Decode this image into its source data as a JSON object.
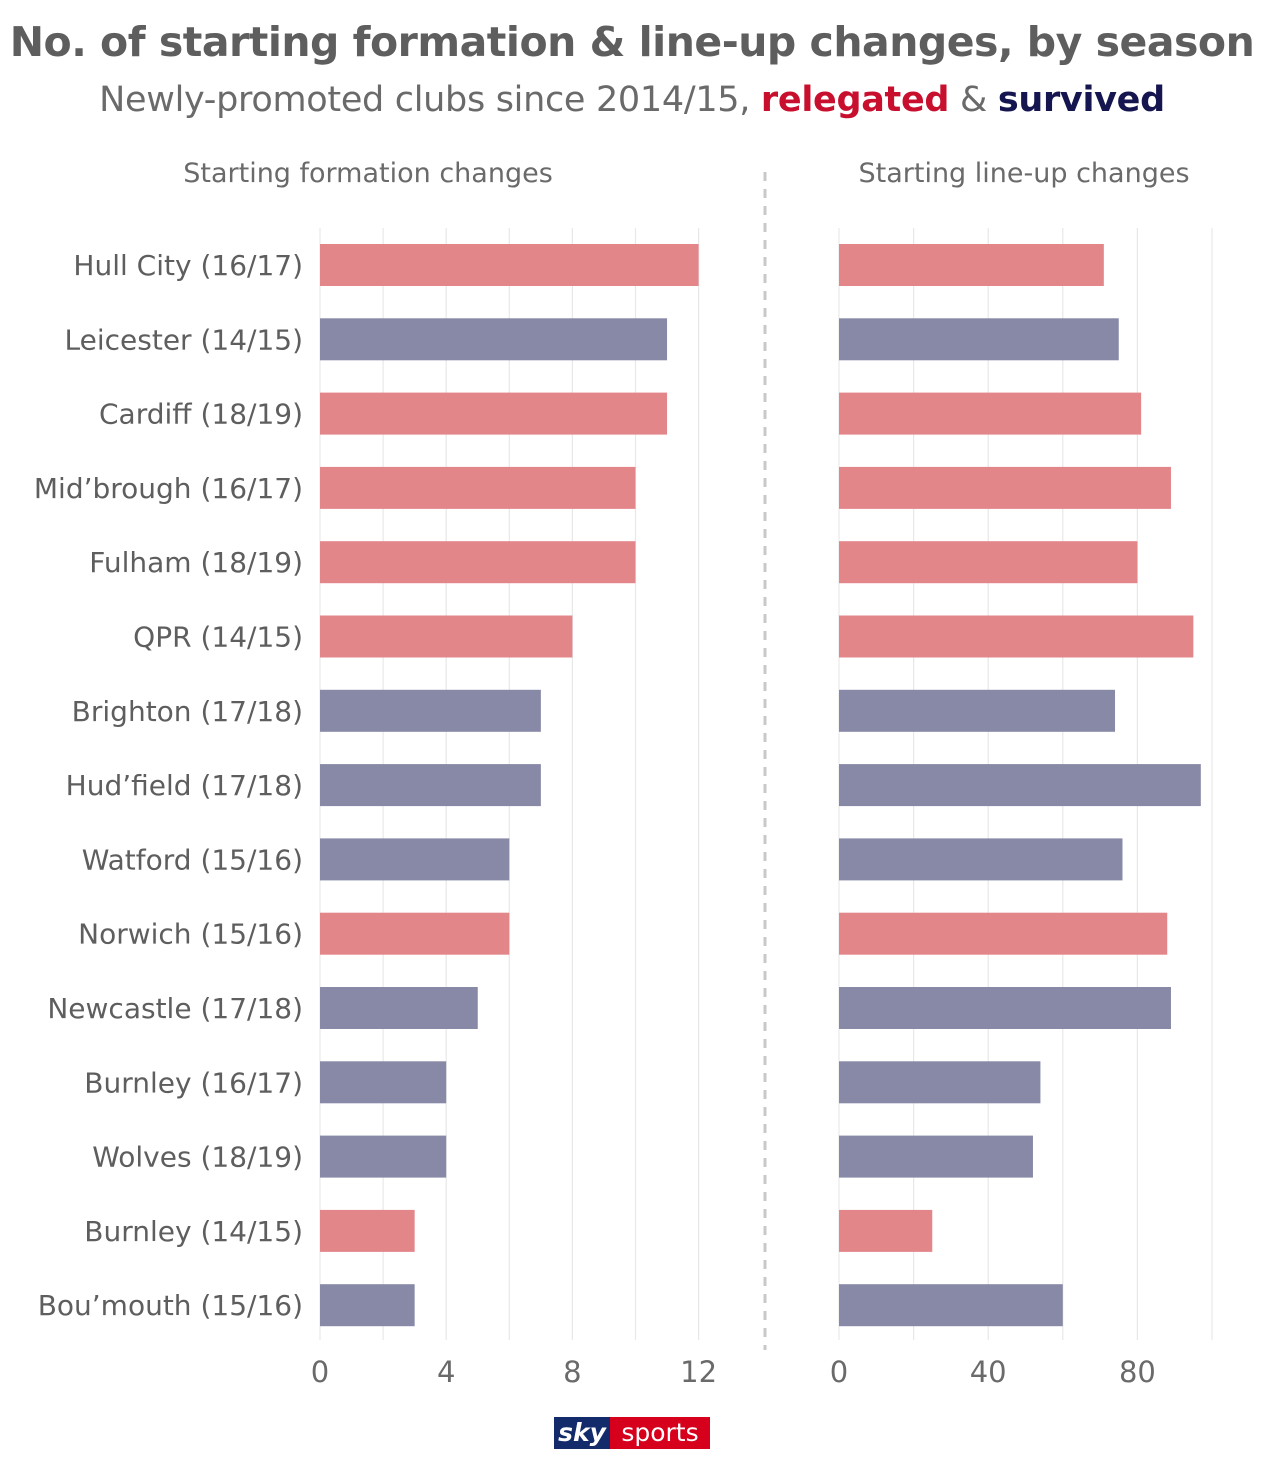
{
  "title": "No. of starting formation & line-up changes, by season",
  "subtitle": {
    "prefix": "Newly-promoted clubs since 2014/15,",
    "relegated": "relegated",
    "amp": "&",
    "survived": "survived"
  },
  "colors": {
    "relegated": "#e3868a",
    "survived": "#8789a6",
    "relegated_text": "#c8102e",
    "survived_text": "#15154f"
  },
  "logo": {
    "sky": "sky",
    "sports": "sports"
  },
  "chart_data": [
    {
      "type": "bar",
      "orientation": "horizontal",
      "title": "Starting formation changes",
      "categories": [
        "Hull City (16/17)",
        "Leicester (14/15)",
        "Cardiff (18/19)",
        "Mid’brough (16/17)",
        "Fulham (18/19)",
        "QPR (14/15)",
        "Brighton (17/18)",
        "Hud’field (17/18)",
        "Watford (15/16)",
        "Norwich (15/16)",
        "Newcastle (17/18)",
        "Burnley (16/17)",
        "Wolves (18/19)",
        "Burnley (14/15)",
        "Bou’mouth (15/16)"
      ],
      "values": [
        12,
        11,
        11,
        10,
        10,
        8,
        7,
        7,
        6,
        6,
        5,
        4,
        4,
        3,
        3
      ],
      "status": [
        "relegated",
        "survived",
        "relegated",
        "relegated",
        "relegated",
        "relegated",
        "survived",
        "survived",
        "survived",
        "relegated",
        "survived",
        "survived",
        "survived",
        "relegated",
        "survived"
      ],
      "xlim": [
        0,
        13
      ],
      "xticks": [
        0,
        4,
        8,
        12
      ],
      "grid": true
    },
    {
      "type": "bar",
      "orientation": "horizontal",
      "title": "Starting line-up changes",
      "categories": [
        "Hull City (16/17)",
        "Leicester (14/15)",
        "Cardiff (18/19)",
        "Mid’brough (16/17)",
        "Fulham (18/19)",
        "QPR (14/15)",
        "Brighton (17/18)",
        "Hud’field (17/18)",
        "Watford (15/16)",
        "Norwich (15/16)",
        "Newcastle (17/18)",
        "Burnley (16/17)",
        "Wolves (18/19)",
        "Burnley (14/15)",
        "Bou’mouth (15/16)"
      ],
      "values": [
        71,
        75,
        81,
        89,
        80,
        95,
        74,
        97,
        76,
        88,
        89,
        54,
        52,
        25,
        60
      ],
      "status": [
        "relegated",
        "survived",
        "relegated",
        "relegated",
        "relegated",
        "relegated",
        "survived",
        "survived",
        "survived",
        "relegated",
        "survived",
        "survived",
        "survived",
        "relegated",
        "survived"
      ],
      "xlim": [
        0,
        100
      ],
      "xticks": [
        0,
        40,
        80
      ],
      "grid": true
    }
  ]
}
